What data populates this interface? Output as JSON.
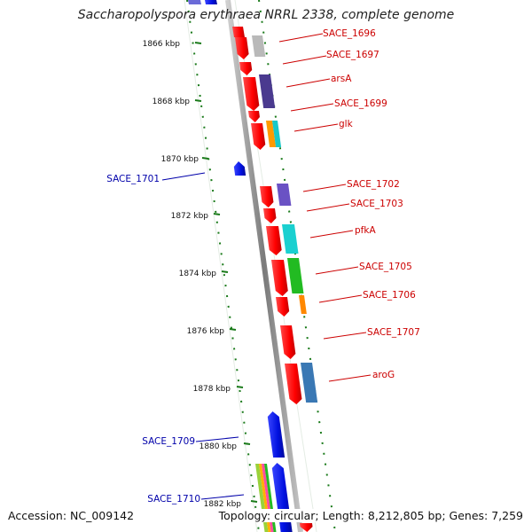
{
  "title": "Saccharopolyspora erythraea NRRL 2338, complete genome",
  "accession": "Accession: NC_009142",
  "topology": "Topology: circular; Length: 8,212,805 bp; Genes: 7,259",
  "ticks": [
    {
      "label": "1866 kbp"
    },
    {
      "label": "1868 kbp"
    },
    {
      "label": "1870 kbp"
    },
    {
      "label": "1872 kbp"
    },
    {
      "label": "1874 kbp"
    },
    {
      "label": "1876 kbp"
    },
    {
      "label": "1878 kbp"
    },
    {
      "label": "1880 kbp"
    },
    {
      "label": "1882 kbp"
    }
  ],
  "genes_right": [
    {
      "label": "SACE_1696"
    },
    {
      "label": "SACE_1697"
    },
    {
      "label": "arsA"
    },
    {
      "label": "SACE_1699"
    },
    {
      "label": "glk"
    },
    {
      "label": "SACE_1702"
    },
    {
      "label": "SACE_1703"
    },
    {
      "label": "pfkA"
    },
    {
      "label": "SACE_1705"
    },
    {
      "label": "SACE_1706"
    },
    {
      "label": "SACE_1707"
    },
    {
      "label": "aroG"
    }
  ],
  "genes_left": [
    {
      "label": "SACE_1701"
    },
    {
      "label": "SACE_1709"
    },
    {
      "label": "SACE_1710"
    }
  ],
  "colors": {
    "forward": "#ff1a1a",
    "reverse": "#0a14e6",
    "label_right": "#cc0000",
    "label_left": "#0000aa",
    "tick": "#1a7a1a",
    "backbone": "#888888"
  }
}
